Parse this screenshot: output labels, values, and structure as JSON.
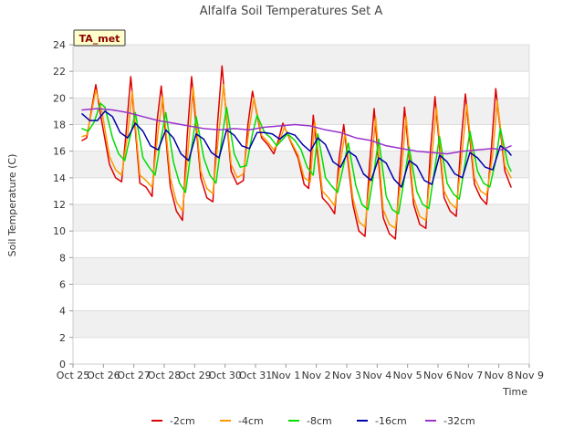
{
  "chart_data": {
    "type": "line",
    "title": "Alfalfa Soil Temperatures Set A",
    "xlabel": "Time",
    "ylabel": "Soil Temperature (C)",
    "ylim": [
      0,
      24
    ],
    "yticks": [
      0,
      2,
      4,
      6,
      8,
      10,
      12,
      14,
      16,
      18,
      20,
      22,
      24
    ],
    "xlim": [
      "Oct 25",
      "Nov 9"
    ],
    "xticks": [
      "Oct 25",
      "Oct 26",
      "Oct 27",
      "Oct 28",
      "Oct 29",
      "Oct 30",
      "Oct 31",
      "Nov 1",
      "Nov 2",
      "Nov 3",
      "Nov 4",
      "Nov 5",
      "Nov 6",
      "Nov 7",
      "Nov 8",
      "Nov 9"
    ],
    "grid": true,
    "annotation": "TA_met",
    "legend_position": "bottom",
    "series": [
      {
        "name": "-2cm",
        "color": "#dd0000",
        "x": [
          0.3,
          0.45,
          0.6,
          0.75,
          0.9,
          1.2,
          1.4,
          1.6,
          1.75,
          1.9,
          2.2,
          2.4,
          2.6,
          2.75,
          2.9,
          3.2,
          3.4,
          3.6,
          3.75,
          3.9,
          4.2,
          4.4,
          4.6,
          4.75,
          4.9,
          5.2,
          5.4,
          5.6,
          5.75,
          5.9,
          6.2,
          6.4,
          6.6,
          6.75,
          6.9,
          7.2,
          7.4,
          7.6,
          7.75,
          7.9,
          8.2,
          8.4,
          8.6,
          8.75,
          8.9,
          9.2,
          9.4,
          9.6,
          9.75,
          9.9,
          10.2,
          10.4,
          10.6,
          10.75,
          10.9,
          11.2,
          11.4,
          11.6,
          11.75,
          11.9,
          12.2,
          12.4,
          12.6,
          12.75,
          12.9,
          13.2,
          13.4,
          13.6,
          13.75,
          13.9,
          14.2,
          14.4
        ],
        "y": [
          16.8,
          17.0,
          19.0,
          21.0,
          18.8,
          15.0,
          14.0,
          13.7,
          17.5,
          21.6,
          13.6,
          13.3,
          12.6,
          18.0,
          20.9,
          13.3,
          11.5,
          10.8,
          17.0,
          21.6,
          14.0,
          12.5,
          12.2,
          18.0,
          22.4,
          14.5,
          13.5,
          13.8,
          18.0,
          20.5,
          17.0,
          16.5,
          15.8,
          16.8,
          18.1,
          16.5,
          15.5,
          13.5,
          13.2,
          18.7,
          12.5,
          12.0,
          11.3,
          15.5,
          18.0,
          12.0,
          10.0,
          9.6,
          15.0,
          19.2,
          11.0,
          9.8,
          9.4,
          14.5,
          19.3,
          12.0,
          10.5,
          10.2,
          16.0,
          20.1,
          12.5,
          11.5,
          11.1,
          16.5,
          20.3,
          13.5,
          12.5,
          12.0,
          16.0,
          20.7,
          14.5,
          13.3
        ]
      },
      {
        "name": "-4cm",
        "color": "#ff9900",
        "x": [
          0.3,
          0.45,
          0.6,
          0.75,
          0.95,
          1.2,
          1.4,
          1.6,
          1.8,
          1.95,
          2.2,
          2.4,
          2.6,
          2.8,
          2.95,
          3.2,
          3.4,
          3.6,
          3.8,
          3.95,
          4.2,
          4.4,
          4.6,
          4.8,
          4.95,
          5.2,
          5.4,
          5.6,
          5.8,
          5.95,
          6.2,
          6.4,
          6.6,
          6.8,
          6.95,
          7.2,
          7.4,
          7.6,
          7.8,
          7.95,
          8.2,
          8.4,
          8.6,
          8.8,
          8.95,
          9.2,
          9.4,
          9.6,
          9.8,
          9.95,
          10.2,
          10.4,
          10.6,
          10.8,
          10.95,
          11.2,
          11.4,
          11.6,
          11.8,
          11.95,
          12.2,
          12.4,
          12.6,
          12.8,
          12.95,
          13.2,
          13.4,
          13.6,
          13.8,
          13.95,
          14.2,
          14.4
        ],
        "y": [
          17.1,
          17.2,
          18.8,
          20.6,
          19.0,
          15.6,
          14.6,
          14.2,
          17.3,
          20.5,
          14.2,
          13.8,
          13.3,
          17.5,
          20.1,
          14.0,
          12.2,
          11.5,
          16.5,
          20.8,
          14.5,
          13.2,
          12.8,
          17.5,
          21.0,
          15.0,
          14.0,
          14.3,
          17.8,
          20.0,
          17.2,
          16.7,
          16.1,
          16.8,
          17.8,
          16.6,
          15.7,
          14.0,
          13.7,
          18.2,
          13.0,
          12.5,
          11.9,
          15.3,
          17.4,
          12.5,
          10.7,
          10.3,
          14.8,
          18.5,
          11.6,
          10.5,
          10.2,
          14.4,
          18.6,
          12.5,
          11.1,
          10.8,
          15.6,
          19.3,
          13.0,
          12.1,
          11.7,
          16.1,
          19.5,
          14.0,
          13.0,
          12.7,
          15.8,
          19.8,
          14.9,
          14.0
        ]
      },
      {
        "name": "-8cm",
        "color": "#00dd00",
        "x": [
          0.3,
          0.5,
          0.7,
          0.9,
          1.05,
          1.3,
          1.5,
          1.7,
          1.9,
          2.05,
          2.3,
          2.5,
          2.7,
          2.9,
          3.05,
          3.3,
          3.5,
          3.7,
          3.9,
          4.05,
          4.3,
          4.5,
          4.7,
          4.9,
          5.05,
          5.3,
          5.5,
          5.7,
          5.9,
          6.05,
          6.3,
          6.5,
          6.7,
          6.9,
          7.05,
          7.3,
          7.5,
          7.7,
          7.9,
          8.05,
          8.3,
          8.5,
          8.7,
          8.9,
          9.05,
          9.3,
          9.5,
          9.7,
          9.9,
          10.05,
          10.3,
          10.5,
          10.7,
          10.9,
          11.05,
          11.3,
          11.5,
          11.7,
          11.9,
          12.05,
          12.3,
          12.5,
          12.7,
          12.9,
          13.05,
          13.3,
          13.5,
          13.7,
          13.9,
          14.05,
          14.3,
          14.4
        ],
        "y": [
          17.7,
          17.5,
          18.2,
          19.6,
          19.3,
          17.0,
          15.8,
          15.3,
          17.3,
          18.9,
          15.5,
          14.8,
          14.2,
          17.0,
          18.9,
          15.2,
          13.6,
          12.9,
          16.3,
          18.6,
          15.5,
          14.2,
          13.6,
          17.0,
          19.3,
          15.8,
          14.8,
          14.9,
          17.3,
          18.7,
          17.4,
          17.0,
          16.4,
          16.9,
          17.3,
          16.8,
          16.1,
          14.8,
          14.2,
          17.3,
          14.0,
          13.4,
          12.9,
          15.0,
          16.6,
          13.4,
          12.0,
          11.6,
          14.5,
          16.9,
          12.6,
          11.6,
          11.3,
          14.0,
          16.3,
          13.0,
          12.0,
          11.7,
          14.8,
          17.1,
          13.6,
          12.8,
          12.4,
          15.2,
          17.5,
          14.5,
          13.6,
          13.3,
          15.3,
          17.7,
          15.0,
          14.5
        ]
      },
      {
        "name": "-16cm",
        "color": "#0000aa",
        "x": [
          0.3,
          0.55,
          0.8,
          1.05,
          1.3,
          1.55,
          1.8,
          2.05,
          2.3,
          2.55,
          2.8,
          3.05,
          3.3,
          3.55,
          3.8,
          4.05,
          4.3,
          4.55,
          4.8,
          5.05,
          5.3,
          5.55,
          5.8,
          6.05,
          6.3,
          6.55,
          6.8,
          7.05,
          7.3,
          7.55,
          7.8,
          8.05,
          8.3,
          8.55,
          8.8,
          9.05,
          9.3,
          9.55,
          9.8,
          10.05,
          10.3,
          10.55,
          10.8,
          11.05,
          11.3,
          11.55,
          11.8,
          12.05,
          12.3,
          12.55,
          12.8,
          13.05,
          13.3,
          13.55,
          13.8,
          14.05,
          14.3,
          14.4
        ],
        "y": [
          18.8,
          18.3,
          18.3,
          19.0,
          18.6,
          17.4,
          17.0,
          18.1,
          17.5,
          16.4,
          16.1,
          17.6,
          17.0,
          15.8,
          15.3,
          17.3,
          16.9,
          15.9,
          15.5,
          17.6,
          17.2,
          16.4,
          16.2,
          17.4,
          17.4,
          17.3,
          16.9,
          17.4,
          17.2,
          16.5,
          16.0,
          17.0,
          16.5,
          15.2,
          14.8,
          16.0,
          15.6,
          14.3,
          13.8,
          15.5,
          15.1,
          13.9,
          13.3,
          15.3,
          14.9,
          13.8,
          13.5,
          15.7,
          15.2,
          14.3,
          14.0,
          15.9,
          15.5,
          14.8,
          14.6,
          16.4,
          16.0,
          15.7
        ]
      },
      {
        "name": "-32cm",
        "color": "#9933cc",
        "x": [
          0.3,
          0.8,
          1.3,
          1.8,
          2.3,
          2.8,
          3.3,
          3.8,
          4.3,
          4.8,
          5.3,
          5.8,
          6.3,
          6.8,
          7.3,
          7.8,
          8.3,
          8.8,
          9.3,
          9.8,
          10.3,
          10.8,
          11.3,
          11.8,
          12.3,
          12.8,
          13.3,
          13.8,
          14.1,
          14.4
        ],
        "y": [
          19.1,
          19.2,
          19.1,
          18.9,
          18.6,
          18.3,
          18.1,
          17.9,
          17.7,
          17.6,
          17.7,
          17.6,
          17.8,
          17.9,
          18.0,
          17.9,
          17.6,
          17.4,
          17.0,
          16.8,
          16.4,
          16.2,
          16.0,
          15.9,
          15.8,
          16.0,
          16.1,
          16.2,
          16.1,
          16.4
        ]
      }
    ]
  }
}
